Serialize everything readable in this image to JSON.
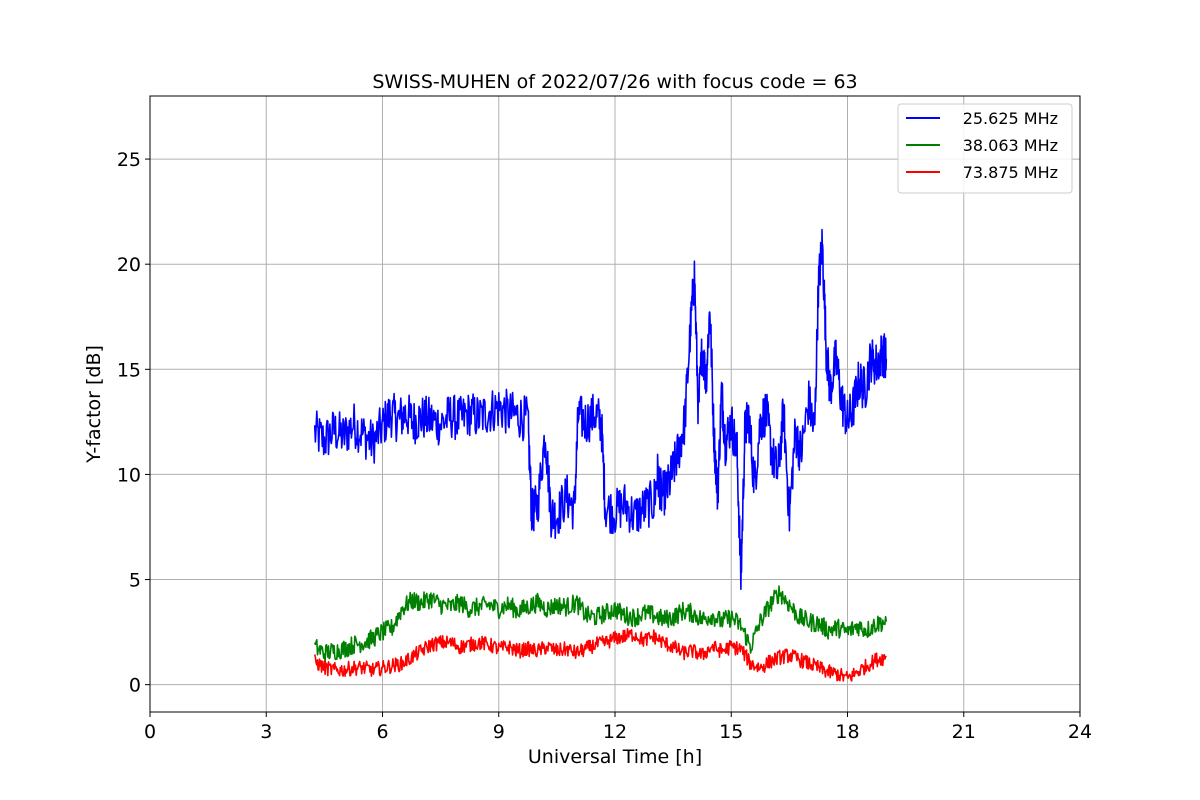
{
  "chart_data": {
    "type": "line",
    "title": "SWISS-MUHEN of 2022/07/26 with focus code = 63",
    "xlabel": "Universal Time [h]",
    "ylabel": "Y-factor [dB]",
    "xlim": [
      0,
      24
    ],
    "ylim": [
      -1.3,
      28
    ],
    "xticks": [
      0,
      3,
      6,
      9,
      12,
      15,
      18,
      21,
      24
    ],
    "yticks": [
      0,
      5,
      10,
      15,
      20,
      25
    ],
    "grid": true,
    "legend_position": "top-right",
    "series": [
      {
        "name": "25.625 MHz",
        "color": "#0000ff",
        "x": [
          4.25,
          4.5,
          4.75,
          5.0,
          5.25,
          5.5,
          5.75,
          6.0,
          6.2,
          6.4,
          6.6,
          6.8,
          7.0,
          7.25,
          7.5,
          7.75,
          8.0,
          8.25,
          8.5,
          8.75,
          9.0,
          9.25,
          9.5,
          9.75,
          9.85,
          10.0,
          10.2,
          10.35,
          10.5,
          10.75,
          10.95,
          11.05,
          11.25,
          11.5,
          11.65,
          11.75,
          12.0,
          12.25,
          12.5,
          12.75,
          13.0,
          13.1,
          13.2,
          13.35,
          13.5,
          13.65,
          13.8,
          13.95,
          14.05,
          14.15,
          14.25,
          14.35,
          14.45,
          14.55,
          14.65,
          14.75,
          14.85,
          15.0,
          15.15,
          15.25,
          15.35,
          15.45,
          15.6,
          15.75,
          15.9,
          16.05,
          16.2,
          16.35,
          16.5,
          16.65,
          16.8,
          17.0,
          17.15,
          17.25,
          17.35,
          17.45,
          17.55,
          17.7,
          17.85,
          18.0,
          18.15,
          18.3,
          18.45,
          18.6,
          18.75,
          18.9,
          19.0
        ],
        "values": [
          12.0,
          11.6,
          12.1,
          11.8,
          12.4,
          11.9,
          11.5,
          12.3,
          12.9,
          12.6,
          12.9,
          12.5,
          12.7,
          12.6,
          12.4,
          12.8,
          12.6,
          12.9,
          12.7,
          13.0,
          13.2,
          12.9,
          12.8,
          12.6,
          8.2,
          8.5,
          12.0,
          8.1,
          8.0,
          9.0,
          8.3,
          12.8,
          12.5,
          12.9,
          12.4,
          8.4,
          8.2,
          8.6,
          8.0,
          8.4,
          8.7,
          10.0,
          9.0,
          9.3,
          10.2,
          11.2,
          12.5,
          17.0,
          19.5,
          13.0,
          16.0,
          14.5,
          18.0,
          12.0,
          9.0,
          14.0,
          11.5,
          12.5,
          11.0,
          5.0,
          12.0,
          12.8,
          9.5,
          12.5,
          13.0,
          11.0,
          10.0,
          13.0,
          8.0,
          12.0,
          11.0,
          13.5,
          12.0,
          19.0,
          21.0,
          16.0,
          14.0,
          15.5,
          13.5,
          12.5,
          13.2,
          14.5,
          14.0,
          15.5,
          15.2,
          15.8,
          15.5
        ]
      },
      {
        "name": "38.063 MHz",
        "color": "#008000",
        "x": [
          4.25,
          4.5,
          4.75,
          5.0,
          5.25,
          5.5,
          5.75,
          6.0,
          6.25,
          6.5,
          6.75,
          7.0,
          7.25,
          7.5,
          7.75,
          8.0,
          8.25,
          8.5,
          8.75,
          9.0,
          9.25,
          9.5,
          9.75,
          10.0,
          10.25,
          10.5,
          10.75,
          11.0,
          11.25,
          11.5,
          11.75,
          12.0,
          12.25,
          12.5,
          12.75,
          13.0,
          13.25,
          13.5,
          13.75,
          14.0,
          14.25,
          14.5,
          14.75,
          15.0,
          15.25,
          15.5,
          15.75,
          16.0,
          16.25,
          16.5,
          16.75,
          17.0,
          17.25,
          17.5,
          17.75,
          18.0,
          18.25,
          18.5,
          18.75,
          19.0
        ],
        "values": [
          1.8,
          1.5,
          1.6,
          1.7,
          1.9,
          2.0,
          2.2,
          2.5,
          2.7,
          3.6,
          4.0,
          3.9,
          4.1,
          3.8,
          3.7,
          3.9,
          3.6,
          3.7,
          3.8,
          3.6,
          3.8,
          3.5,
          3.7,
          3.9,
          3.6,
          3.8,
          3.7,
          3.9,
          3.3,
          3.2,
          3.4,
          3.6,
          3.3,
          3.2,
          3.4,
          3.3,
          3.1,
          3.2,
          3.5,
          3.4,
          3.1,
          3.3,
          3.0,
          3.2,
          2.8,
          1.8,
          3.0,
          3.8,
          4.4,
          3.8,
          3.2,
          3.0,
          2.9,
          2.6,
          2.7,
          2.5,
          2.8,
          2.6,
          2.9,
          3.0
        ]
      },
      {
        "name": "73.875 MHz",
        "color": "#ff0000",
        "x": [
          4.25,
          4.5,
          4.75,
          5.0,
          5.25,
          5.5,
          5.75,
          6.0,
          6.25,
          6.5,
          6.75,
          7.0,
          7.25,
          7.5,
          7.75,
          8.0,
          8.25,
          8.5,
          8.75,
          9.0,
          9.25,
          9.5,
          9.75,
          10.0,
          10.25,
          10.5,
          10.75,
          11.0,
          11.25,
          11.5,
          11.75,
          12.0,
          12.25,
          12.5,
          12.75,
          13.0,
          13.25,
          13.5,
          13.75,
          14.0,
          14.25,
          14.5,
          14.75,
          15.0,
          15.25,
          15.5,
          15.75,
          16.0,
          16.25,
          16.5,
          16.75,
          17.0,
          17.25,
          17.5,
          17.75,
          18.0,
          18.25,
          18.5,
          18.75,
          19.0
        ],
        "values": [
          1.1,
          0.8,
          0.7,
          0.7,
          0.8,
          0.8,
          0.7,
          0.8,
          0.9,
          1.0,
          1.3,
          1.6,
          1.9,
          2.0,
          2.0,
          1.8,
          1.9,
          2.0,
          1.9,
          1.7,
          1.8,
          1.6,
          1.7,
          1.6,
          1.8,
          1.6,
          1.7,
          1.5,
          1.7,
          1.9,
          2.0,
          2.2,
          2.3,
          2.4,
          2.1,
          2.3,
          2.0,
          1.8,
          1.5,
          1.6,
          1.4,
          1.8,
          1.6,
          1.8,
          1.7,
          1.0,
          0.8,
          1.1,
          1.3,
          1.4,
          1.2,
          1.0,
          0.8,
          0.6,
          0.5,
          0.3,
          0.6,
          0.9,
          1.2,
          1.3
        ]
      }
    ]
  }
}
